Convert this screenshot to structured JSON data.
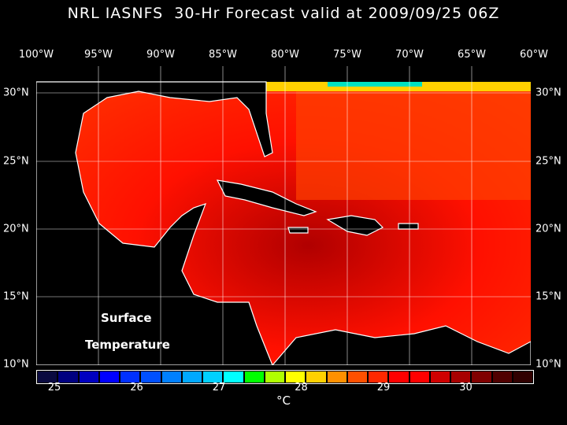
{
  "title": "NRL IASNFS  30-Hr Forecast valid at 2009/09/25 06Z",
  "lon_labels": [
    "100°W",
    "95°W",
    "90°W",
    "85°W",
    "80°W",
    "75°W",
    "70°W",
    "65°W",
    "60°W"
  ],
  "lat_labels": [
    "30°N",
    "25°N",
    "20°N",
    "15°N",
    "10°N"
  ],
  "field_label_1": "Surface",
  "field_label_2": "Temperature",
  "colorbar": {
    "colors": [
      "#0a0a40",
      "#000080",
      "#0000c0",
      "#0000ff",
      "#0030ff",
      "#0050ff",
      "#0080ff",
      "#00a8ff",
      "#00d0ff",
      "#00ffff",
      "#00ff00",
      "#b0ff00",
      "#ffff00",
      "#ffd000",
      "#ff9000",
      "#ff5000",
      "#ff2800",
      "#ff0000",
      "#ff0000",
      "#d00000",
      "#a80000",
      "#800000",
      "#500000",
      "#300000"
    ],
    "ticks": [
      "25",
      "26",
      "27",
      "28",
      "29",
      "30"
    ],
    "unit": "°C"
  }
}
